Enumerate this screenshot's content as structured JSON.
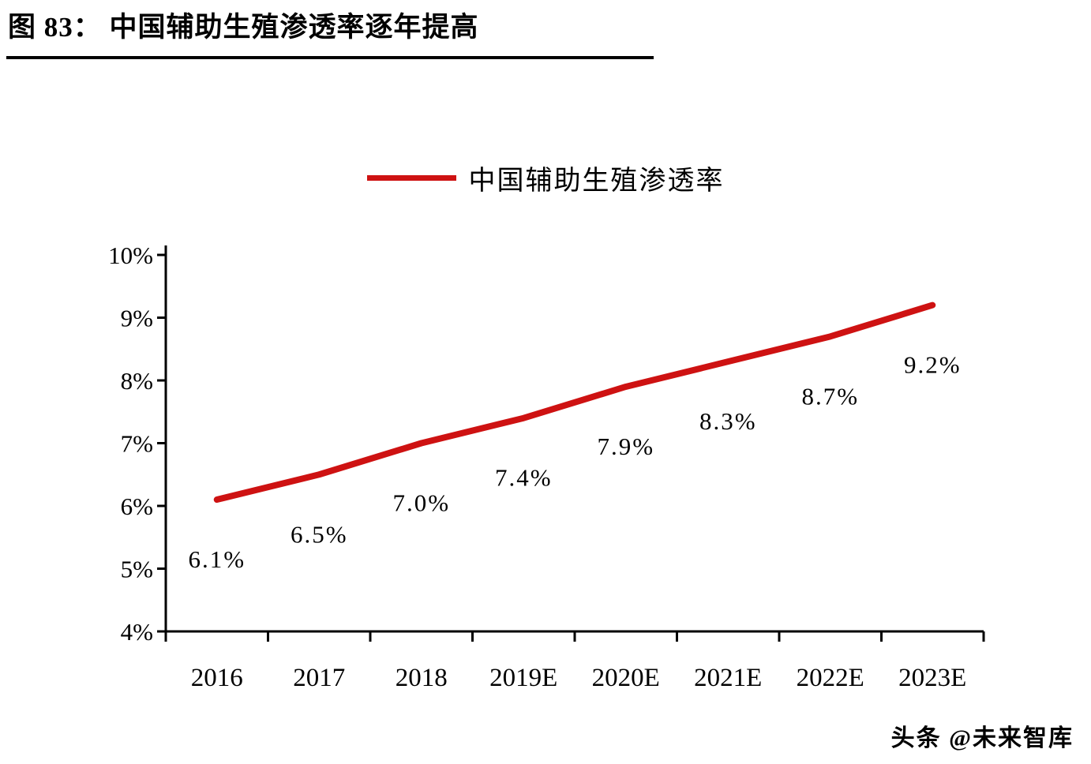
{
  "figure": {
    "title": "图 83： 中国辅助生殖渗透率逐年提高"
  },
  "legend": {
    "label": "中国辅助生殖渗透率"
  },
  "watermark": "头条 @未来智库",
  "colors": {
    "line": "#ce1212",
    "axis": "#000000",
    "text": "#000000",
    "background": "#ffffff"
  },
  "chart_data": {
    "type": "line",
    "title": "中国辅助生殖渗透率逐年提高",
    "series_name": "中国辅助生殖渗透率",
    "categories": [
      "2016",
      "2017",
      "2018",
      "2019E",
      "2020E",
      "2021E",
      "2022E",
      "2023E"
    ],
    "values": [
      6.1,
      6.5,
      7.0,
      7.4,
      7.9,
      8.3,
      8.7,
      9.2
    ],
    "labels": [
      "6.1%",
      "6.5%",
      "7.0%",
      "7.4%",
      "7.9%",
      "8.3%",
      "8.7%",
      "9.2%"
    ],
    "xlabel": "",
    "ylabel": "",
    "ylim": [
      4,
      10
    ],
    "ytick_step": 1,
    "ytick_labels": [
      "4%",
      "5%",
      "6%",
      "7%",
      "8%",
      "9%",
      "10%"
    ],
    "grid": false,
    "legend_position": "top-center"
  }
}
